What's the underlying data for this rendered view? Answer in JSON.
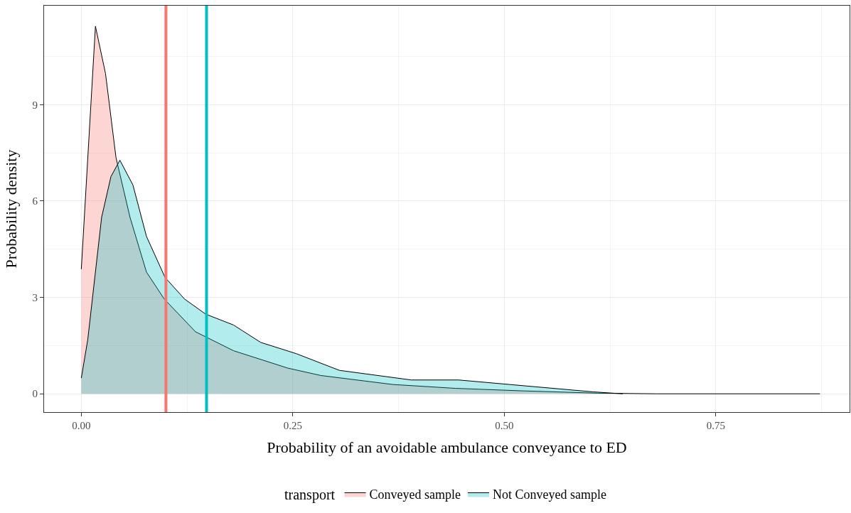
{
  "chart_data": {
    "type": "area",
    "xlabel": "Probability of an avoidable ambulance conveyance to ED",
    "ylabel": "Probability density",
    "legend_title": "transport",
    "series": [
      {
        "name": "Conveyed sample",
        "color": "#f8766d",
        "x": [
          0,
          0.0167,
          0.0286,
          0.041,
          0.0576,
          0.077,
          0.098,
          0.135,
          0.18,
          0.244,
          0.283,
          0.368,
          0.442,
          0.523,
          0.61,
          0.68,
          0.873
        ],
        "values": [
          3.88,
          11.44,
          9.97,
          7.35,
          5.49,
          3.79,
          2.95,
          1.93,
          1.34,
          0.8,
          0.57,
          0.29,
          0.17,
          0.09,
          0.02,
          0,
          0
        ]
      },
      {
        "name": "Not Conveyed sample",
        "color": "#00bfc4",
        "x": [
          0,
          0.0076,
          0.024,
          0.035,
          0.0456,
          0.061,
          0.077,
          0.099,
          0.122,
          0.147,
          0.18,
          0.212,
          0.254,
          0.305,
          0.39,
          0.446,
          0.506,
          0.605,
          0.64
        ],
        "values": [
          0.49,
          1.68,
          5.49,
          6.76,
          7.27,
          6.5,
          4.9,
          3.62,
          2.95,
          2.48,
          2.14,
          1.6,
          1.25,
          0.73,
          0.43,
          0.43,
          0.29,
          0.06,
          0
        ]
      }
    ],
    "ref_lines": [
      {
        "axis": "x",
        "value": 0.1,
        "color": "#f8766d"
      },
      {
        "axis": "x",
        "value": 0.148,
        "color": "#00bfc4"
      }
    ],
    "xlim": [
      -0.044,
      0.908
    ],
    "ylim": [
      -0.57,
      12.08
    ],
    "xticks": [
      {
        "value": 0,
        "label": "0.00"
      },
      {
        "value": 0.25,
        "label": "0.25"
      },
      {
        "value": 0.5,
        "label": "0.50"
      },
      {
        "value": 0.75,
        "label": "0.75"
      }
    ],
    "yticks": [
      0,
      3,
      6,
      9
    ],
    "grid": true,
    "legend": "bottom"
  }
}
